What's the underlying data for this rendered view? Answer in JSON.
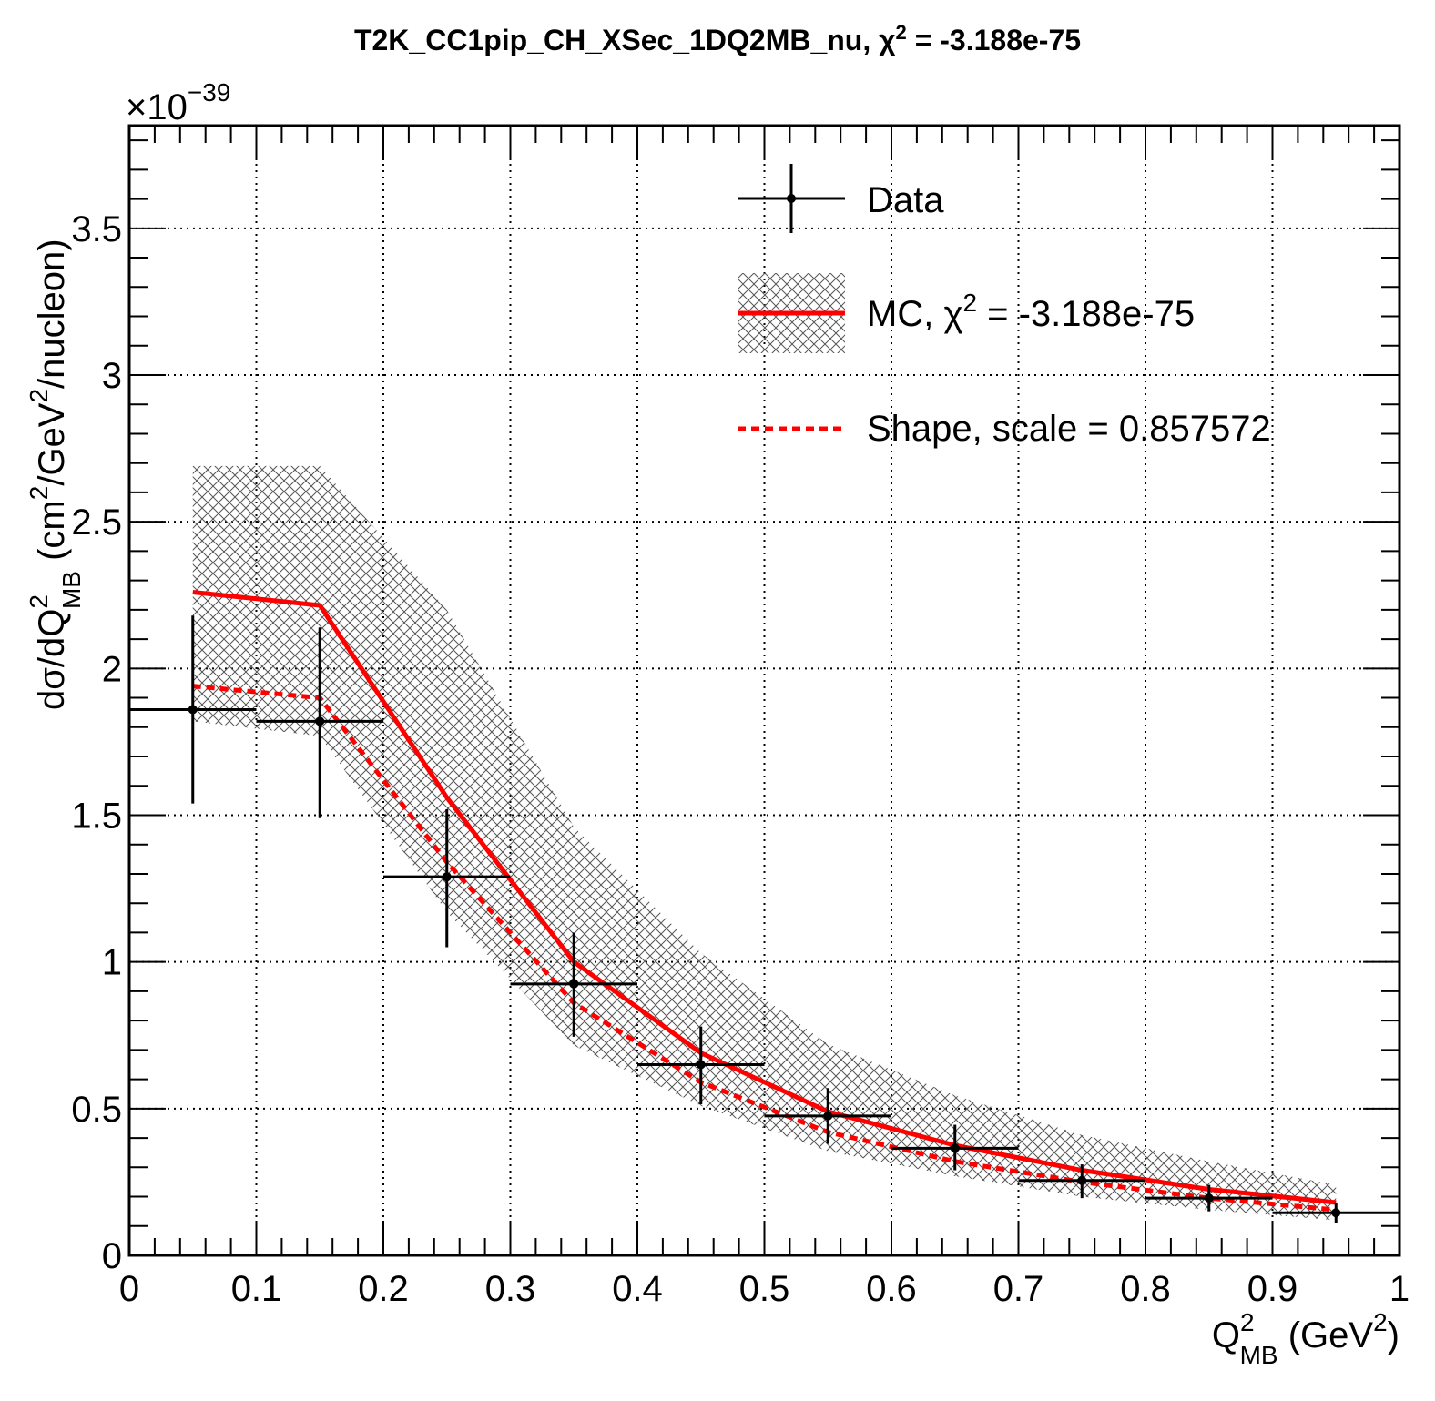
{
  "chart_data": {
    "type": "line",
    "title": "T2K_CC1pip_CH_XSec_1DQ2MB_nu, χ² = -3.188e-75",
    "title_parts": {
      "main": "T2K_CC1pip_CH_XSec_1DQ2MB_nu, ",
      "chi": "χ",
      "sup": "2",
      "rest": " = -3.188e-75"
    },
    "xlabel": {
      "main": "Q",
      "sup": "2",
      "sub": "MB",
      "rest": " (GeV",
      "sup2": "2",
      "end": ")"
    },
    "ylabel": {
      "main": "dσ/dQ",
      "sup": "2",
      "sub": "MB",
      "rest": " (cm",
      "sup2": "2",
      "mid": "/GeV",
      "sup3": "2",
      "end": "/nucleon)"
    },
    "y_exponent": {
      "prefix": "×10",
      "sup": "−39"
    },
    "xlim": [
      0,
      1
    ],
    "ylim": [
      0,
      3.85
    ],
    "x_ticks": [
      "0",
      "0.1",
      "0.2",
      "0.3",
      "0.4",
      "0.5",
      "0.6",
      "0.7",
      "0.8",
      "0.9",
      "1"
    ],
    "x_tick_values": [
      0,
      0.1,
      0.2,
      0.3,
      0.4,
      0.5,
      0.6,
      0.7,
      0.8,
      0.9,
      1.0
    ],
    "y_ticks": [
      "0",
      "0.5",
      "1",
      "1.5",
      "2",
      "2.5",
      "3",
      "3.5"
    ],
    "y_tick_values": [
      0,
      0.5,
      1.0,
      1.5,
      2.0,
      2.5,
      3.0,
      3.5
    ],
    "grid": true,
    "legend_position": "top-right",
    "series": [
      {
        "name": "Data",
        "style": "points with error bars",
        "color": "#000000",
        "bins": [
          {
            "x": 0.05,
            "xlo": 0.0,
            "xhi": 0.1,
            "y": 1.86,
            "ylo": 1.54,
            "yhi": 2.18
          },
          {
            "x": 0.15,
            "xlo": 0.1,
            "xhi": 0.2,
            "y": 1.82,
            "ylo": 1.49,
            "yhi": 2.14
          },
          {
            "x": 0.25,
            "xlo": 0.2,
            "xhi": 0.3,
            "y": 1.29,
            "ylo": 1.05,
            "yhi": 1.52
          },
          {
            "x": 0.35,
            "xlo": 0.3,
            "xhi": 0.4,
            "y": 0.925,
            "ylo": 0.745,
            "yhi": 1.1
          },
          {
            "x": 0.45,
            "xlo": 0.4,
            "xhi": 0.5,
            "y": 0.65,
            "ylo": 0.515,
            "yhi": 0.78
          },
          {
            "x": 0.55,
            "xlo": 0.5,
            "xhi": 0.6,
            "y": 0.475,
            "ylo": 0.38,
            "yhi": 0.57
          },
          {
            "x": 0.65,
            "xlo": 0.6,
            "xhi": 0.7,
            "y": 0.365,
            "ylo": 0.29,
            "yhi": 0.445
          },
          {
            "x": 0.75,
            "xlo": 0.7,
            "xhi": 0.8,
            "y": 0.255,
            "ylo": 0.195,
            "yhi": 0.31
          },
          {
            "x": 0.85,
            "xlo": 0.8,
            "xhi": 0.9,
            "y": 0.195,
            "ylo": 0.15,
            "yhi": 0.24
          },
          {
            "x": 0.95,
            "xlo": 0.9,
            "xhi": 1.0,
            "y": 0.145,
            "ylo": 0.11,
            "yhi": 0.18
          }
        ]
      },
      {
        "name": "MC, χ² = -3.188e-75",
        "name_parts": {
          "main": "MC, ",
          "chi": "χ",
          "sup": "2",
          "rest": " = -3.188e-75"
        },
        "style": "solid line with hatched error band",
        "color": "#ff0000",
        "x": [
          0.05,
          0.15,
          0.25,
          0.35,
          0.45,
          0.55,
          0.65,
          0.75,
          0.85,
          0.95
        ],
        "values": [
          2.26,
          2.215,
          1.56,
          1.0,
          0.69,
          0.49,
          0.375,
          0.29,
          0.225,
          0.18
        ],
        "band_lo": [
          1.82,
          1.77,
          1.17,
          0.715,
          0.51,
          0.355,
          0.27,
          0.2,
          0.155,
          0.12
        ],
        "band_hi": [
          2.69,
          2.69,
          2.2,
          1.46,
          1.03,
          0.72,
          0.545,
          0.41,
          0.32,
          0.24
        ]
      },
      {
        "name": "Shape, scale = 0.857572",
        "style": "dashed line",
        "color": "#ff0000",
        "x": [
          0.05,
          0.15,
          0.25,
          0.35,
          0.45,
          0.55,
          0.65,
          0.75,
          0.85,
          0.95
        ],
        "values": [
          1.94,
          1.9,
          1.34,
          0.86,
          0.59,
          0.42,
          0.32,
          0.25,
          0.195,
          0.155
        ]
      }
    ]
  }
}
